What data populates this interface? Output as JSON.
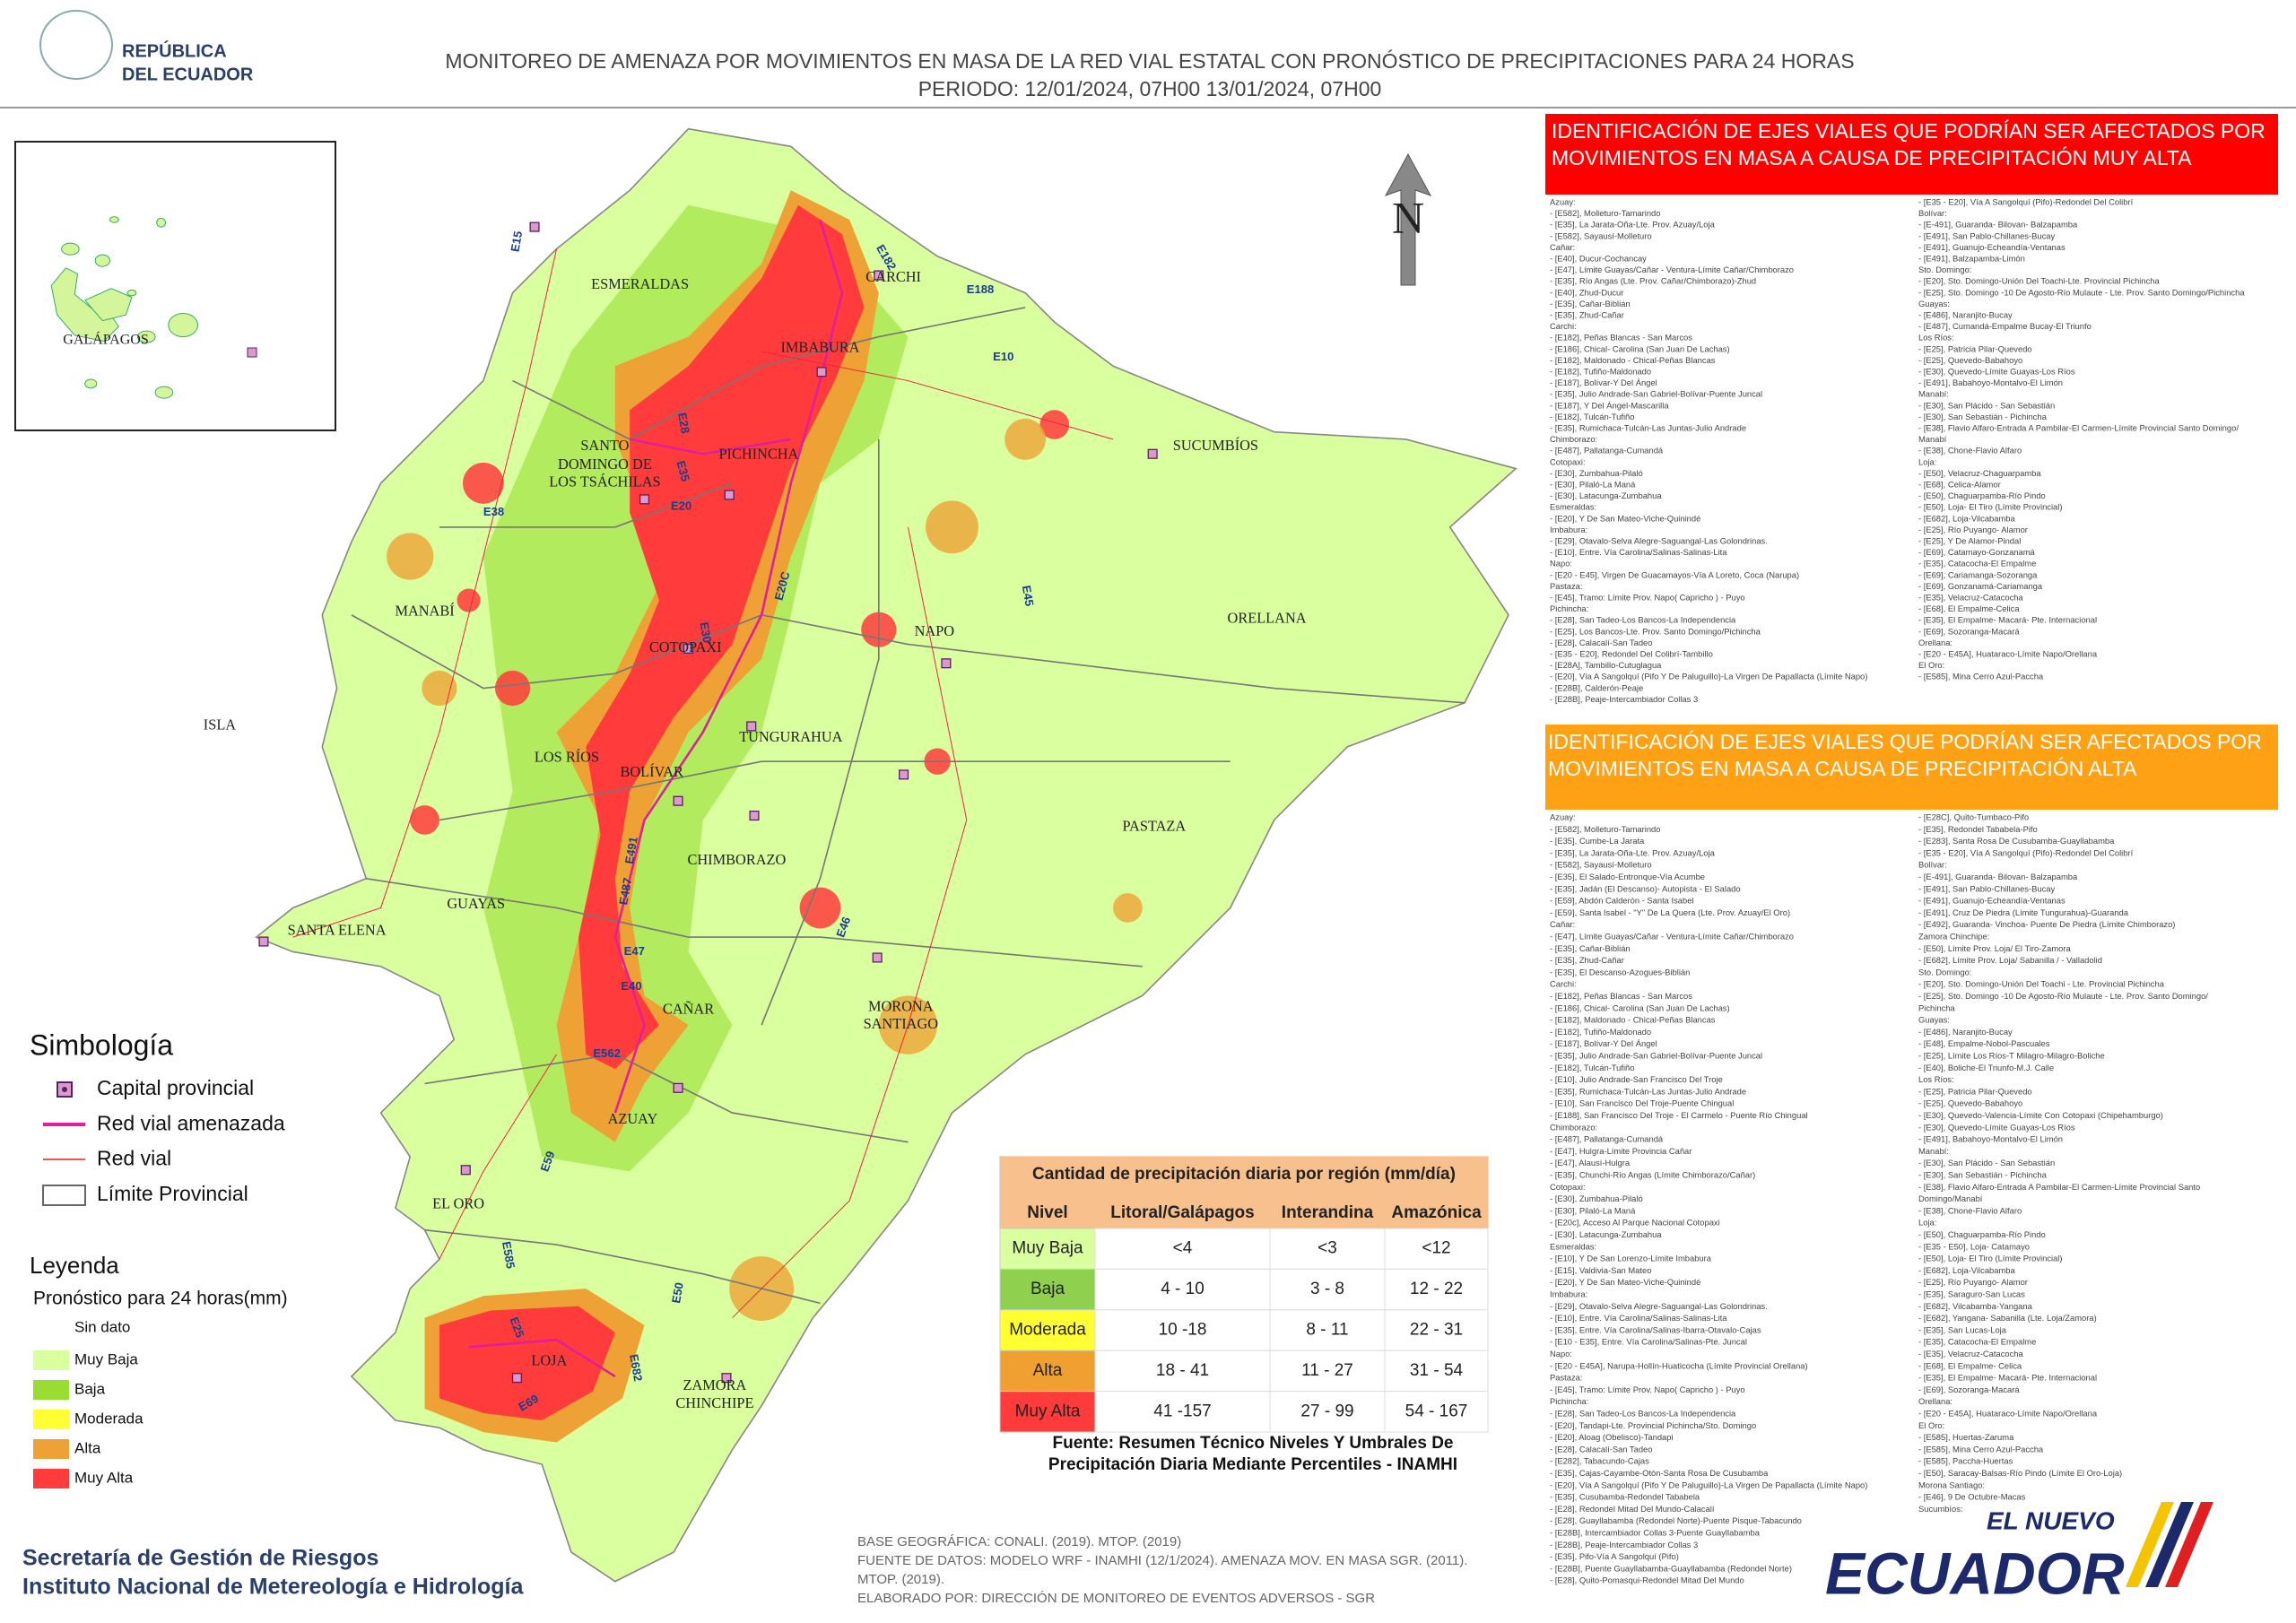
{
  "header": {
    "logo_text": [
      "REPÚBLICA",
      "DEL ECUADOR"
    ],
    "title": "MONITOREO DE AMENAZA POR MOVIMIENTOS EN MASA DE LA RED VIAL  ESTATAL  CON PRONÓSTICO  DE  PRECIPITACIONES PARA 24 HORAS",
    "period": "PERIODO: 12/01/2024, 07H00 13/01/2024, 07H00"
  },
  "inset": {
    "label": "GALÁPAGOS"
  },
  "north": "N",
  "map": {
    "provinces": [
      "ESMERALDAS",
      "CARCHI",
      "IMBABURA",
      "SUCUMBÍOS",
      "SANTO",
      "DOMINGO DE",
      "LOS TSÁCHILAS",
      "PICHINCHA",
      "MANABÍ",
      "COTOPAXI",
      "NAPO",
      "ORELLANA",
      "ISLA",
      "TUNGURAHUA",
      "LOS RÍOS",
      "BOLÍVAR",
      "PASTAZA",
      "CHIMBORAZO",
      "GUAYAS",
      "SANTA ELENA",
      "CAÑAR",
      "MORONA",
      "SANTIAGO",
      "AZUAY",
      "EL ORO",
      "LOJA",
      "ZAMORA",
      "CHINCHIPE"
    ],
    "roads": [
      "E15",
      "E182",
      "E10",
      "E28",
      "E35",
      "E20",
      "E30",
      "E45",
      "E40",
      "E25",
      "E59",
      "E50",
      "E69",
      "E682",
      "E487",
      "E491",
      "E38",
      "E20C",
      "E47",
      "E46",
      "E585",
      "E562",
      "E188"
    ]
  },
  "panel_very_high": {
    "title": [
      "IDENTIFICACIÓN DE EJES VIALES QUE PODRÍAN SER AFECTADOS POR",
      "MOVIMIENTOS EN MASA A CAUSA DE PRECIPITACIÓN MUY ALTA"
    ],
    "col1": [
      "Azuay:",
      "- [E582], Molleturo-Tamarindo",
      "- [E35], La Jarata-Oña-Lte. Prov. Azuay/Loja",
      "- [E582], Sayausí-Molleturo",
      "Cañar:",
      "- [E40], Ducur-Cochancay",
      "- [E47], Límite Guayas/Cañar - Ventura-Límite Cañar/Chimborazo",
      "- [E35], Río Angas (Lte. Prov. Cañar/Chimborazo)-Zhud",
      "- [E40], Zhud-Ducur",
      "- [E35], Cañar-Biblián",
      "- [E35], Zhud-Cañar",
      "Carchi:",
      "- [E182], Peñas Blancas - San Marcos",
      "- [E186], Chical- Carolina (San Juan De Lachas)",
      "- [E182], Maldonado - Chical-Peñas Blancas",
      "- [E182], Tufiño-Maldonado",
      "- [E187], Bolívar-Y Del Ángel",
      "- [E35], Julio Andrade-San Gabriel-Bolívar-Puente Juncal",
      "- [E187], Y Del Ángel-Mascarilla",
      "- [E182], Tulcán-Tufiño",
      "- [E35], Rumichaca-Tulcán-Las Juntas-Julio Andrade",
      "Chimborazo:",
      "- [E487], Pallatanga-Cumandá",
      "Cotopaxi:",
      "- [E30], Zumbahua-Pilaló",
      "- [E30], Pilaló-La Maná",
      "- [E30], Latacunga-Zumbahua",
      "Esmeraldas:",
      "- [E20], Y De San Mateo-Viche-Quinindé",
      "Imbabura:",
      "- [E29], Otavalo-Selva Alegre-Saguangal-Las Golondrinas.",
      "- [E10], Entre. Vía Carolina/Salinas-Salinas-Lita",
      "Napo:",
      "- [E20 - E45], Virgen De Guacamayos-Vía A Loreto, Coca (Narupa)",
      "Pastaza:",
      "- [E45], Tramo: Límite Prov. Napo( Capricho ) - Puyo",
      "Pichincha:",
      "- [E28], San Tadeo-Los Bancos-La Independencia",
      "- [E25], Los Bancos-Lte. Prov. Santo Domingo/Pichincha",
      "- [E28], Calacalí-San Tadeo",
      "- [E35 - E20], Redondel Del Colibrí-Tambillo",
      "- [E28A], Tambillo-Cutuglagua",
      "- [E20], Vía A Sangolquí (Pifo Y De Paluguillo)-La Virgen De Papallacta (Límite Napo)",
      "- [E28B], Calderón-Peaje",
      "- [E28B], Peaje-Intercambiador Collas 3"
    ],
    "col2": [
      "- [E35 - E20], Vía A Sangolquí (Pifo)-Redondel Del Colibrí",
      "Bolívar:",
      "- [E-491], Guaranda- Bilovan- Balzapamba",
      "- [E491], San Pablo-Chillanes-Bucay",
      "- [E491], Guanujo-Echeandía-Ventanas",
      "- [E491], Balzapamba-Limón",
      "Sto. Domingo:",
      "- [E20], Sto. Domingo-Unión Del Toachi-Lte. Provincial Pichincha",
      "- [E25], Sto. Domingo -10 De Agosto-Río Mulaute - Lte. Prov. Santo Domingo/Pichincha",
      "Guayas:",
      "- [E486], Naranjito-Bucay",
      "- [E487], Cumandá-Empalme Bucay-El Triunfo",
      "Los Ríos:",
      "- [E25], Patricia Pilar-Quevedo",
      "- [E25], Quevedo-Babahoyo",
      "- [E30], Quevedo-Límite Guayas-Los Ríos",
      "- [E491], Babahoyo-Montalvo-El Limón",
      "Manabí:",
      "- [E30], San Plácido - San Sebastián",
      "- [E30], San Sebastián - Pichincha",
      "- [E38], Flavio Alfaro-Entrada A Pambilar-El Carmen-Límite Provincial Santo Domingo/",
      "Manabí",
      "- [E38], Chone-Flavio Alfaro",
      "Loja:",
      "- [E50], Velacruz-Chaguarpamba",
      "- [E68], Celica-Alamor",
      "- [E50], Chaguarpamba-Río Pindo",
      "- [E50], Loja- El Tiro (Límite Provincial)",
      "- [E682], Loja-Vilcabamba",
      "- [E25], Río Puyango- Alamor",
      "- [E25], Y De Alamor-Pindal",
      "- [E69], Catamayo-Gonzanamá",
      "- [E35], Catacocha-El Empalme",
      "- [E69], Cariamanga-Sozoranga",
      "- [E69], Gonzanamá-Cariamanga",
      "- [E35], Velacruz-Catacocha",
      "- [E68], El Empalme-Celica",
      "- [E35], El Empalme- Macará- Pte. Internacional",
      "- [E69], Sozoranga-Macará",
      "Orellana:",
      "- [E20 - E45A], Huataraco-Límite Napo/Orellana",
      "El Oro:",
      "- [E585], Mina Cerro Azul-Paccha"
    ]
  },
  "panel_high": {
    "title": [
      "IDENTIFICACIÓN DE EJES VIALES QUE PODRÍAN SER AFECTADOS POR",
      "MOVIMIENTOS EN MASA A CAUSA DE PRECIPITACIÓN  ALTA"
    ],
    "col1": [
      "Azuay:",
      "- [E582], Molleturo-Tamarindo",
      "- [E35], Cumbe-La Jarata",
      "- [E35], La Jarata-Oña-Lte. Prov. Azuay/Loja",
      "- [E582], Sayausí-Molleturo",
      "- [E35], El Salado-Entronque-Vía Acumbe",
      "- [E35], Jadán (El Descanso)- Autopista - El Salado",
      "- [E59], Abdón Calderón - Santa Isabel",
      "- [E59], Santa Isabel - \"Y\" De La Quera (Lte. Prov. Azuay/El Oro)",
      "Cañar:",
      "- [E47], Límite Guayas/Cañar - Ventura-Límite Cañar/Chimborazo",
      "- [E35], Cañar-Biblián",
      "- [E35], Zhud-Cañar",
      "- [E35], El Descanso-Azogues-Biblián",
      "Carchi:",
      "- [E182], Peñas Blancas - San Marcos",
      "- [E186], Chical- Carolina (San Juan De Lachas)",
      "- [E182], Maldonado - Chical-Peñas Blancas",
      "- [E182], Tufiño-Maldonado",
      "- [E187], Bolívar-Y Del Ángel",
      "- [E35], Julio Andrade-San Gabriel-Bolívar-Puente Juncal",
      "- [E182], Tulcán-Tufiño",
      "- [E10], Julio Andrade-San Francisco Del Troje",
      "- [E35], Rumichaca-Tulcán-Las Juntas-Julio Andrade",
      "- [E10], San Francisco Del Troje-Puente Chingual",
      "- [E188], San Francisco Del Troje - El Carmelo - Puente Río Chingual",
      "Chimborazo:",
      "- [E487], Pallatanga-Cumandá",
      "- [E47], Hulgra-Límite Provincia Cañar",
      "- [E47], Alausí-Hulgra",
      "- [E35], Chunchi-Río Angas (Límite Chimborazo/Cañar)",
      "Cotopaxi:",
      "- [E30], Zumbahua-Pilaló",
      "- [E30], Pilaló-La Maná",
      "- [E20c], Acceso Al Parque Nacional Cotopaxi",
      "- [E30], Latacunga-Zumbahua",
      "Esmeraldas:",
      "- [E10], Y De San Lorenzo-Límite Imbabura",
      "- [E15], Valdivia-San Mateo",
      "- [E20], Y De San Mateo-Viche-Quinindé",
      "Imbabura:",
      "- [E29], Otavalo-Selva Alegre-Saguangal-Las Golondrinas.",
      "- [E10], Entre. Vía Carolina/Salinas-Salinas-Lita",
      "- [E35], Entre. Vía Carolina/Salinas-Ibarra-Otavalo-Cajas",
      "- [E10 - E35], Entre. Vía Carolina/Salinas-Pte. Juncal",
      "Napo:",
      "- [E20 - E45A], Narupa-Hollín-Huaticocha (Límite Provincial Orellana)",
      "Pastaza:",
      "- [E45], Tramo: Límite Prov. Napo( Capricho ) - Puyo",
      "Pichincha:",
      "- [E28], San Tadeo-Los Bancos-La Independencia",
      "- [E20], Tandapi-Lte. Provincial Pichincha/Sto. Domingo",
      "- [E20], Aloag (Obelisco)-Tandapi",
      "- [E28], Calacalí-San Tadeo",
      "- [E282], Tabacundo-Cajas",
      "- [E35], Cajas-Cayambe-Otón-Santa Rosa De Cusubamba",
      "- [E20], Vía A Sangolquí (Pifo Y De Paluguillo)-La Virgen De Papallacta (Límite Napo)",
      "- [E35], Cusubamba-Redondel Tababela",
      "- [E28], Redondel Mitad Del Mundo-Calacalí",
      "- [E28], Guayllabamba (Redondel Norte)-Puente Pisque-Tabacundo",
      "- [E28B], Intercambiador Collas 3-Puente Guayllabamba",
      "- [E28B], Peaje-Intercambiador Collas 3",
      "- [E35], Pifo-Vía A Sangolquí (Pifo)",
      "- [E28B], Puente Guayllabamba-Guayllabamba (Redondel Norte)",
      "- [E28], Quito-Pomasqui-Redondel Mitad Del Mundo"
    ],
    "col2": [
      "- [E28C], Quito-Tumbaco-Pifo",
      "- [E35], Redondel Tababela-Pifo",
      "- [E283], Santa Rosa De Cusubamba-Guayllabamba",
      "- [E35 - E20], Vía A Sangolquí (Pifo)-Redondel Del Colibrí",
      "Bolívar:",
      "- [E-491], Guaranda- Bilovan- Balzapamba",
      "- [E491], San Pablo-Chillanes-Bucay",
      "- [E491], Guanujo-Echeandía-Ventanas",
      "- [E491], Cruz De Piedra (Límite Tungurahua)-Guaranda",
      "- [E492], Guaranda- Vinchoa- Puente De Piedra (Límite Chimborazo)",
      "Zamora Chinchipe:",
      "- [E50], Límite Prov. Loja/ El Tiro-Zamora",
      "- [E682], Límite Prov. Loja/ Sabanilla / - Valladolid",
      "Sto. Domingo:",
      "- [E20], Sto. Domingo-Unión Del Toachi - Lte. Provincial Pichincha",
      "- [E25], Sto. Domingo -10 De Agosto-Río Mulaute - Lte. Prov. Santo Domingo/",
      "Pichincha",
      "Guayas:",
      "- [E486], Naranjito-Bucay",
      "- [E48], Empalme-Nobol-Pascuales",
      "- [E25], Límite Los Ríos-T Milagro-Milagro-Boliche",
      "- [E40], Boliche-El Triunfo-M.J. Calle",
      "Los Ríos:",
      "- [E25], Patricia Pilar-Quevedo",
      "- [E25], Quevedo-Babahoyo",
      "- [E30], Quevedo-Valencia-Límite Con Cotopaxi (Chipehamburgo)",
      "- [E30], Quevedo-Límite Guayas-Los Ríos",
      "- [E491], Babahoyo-Montalvo-El Limón",
      "Manabí:",
      "- [E30], San Plácido - San Sebastián",
      "- [E30], San Sebastián - Pichincha",
      "- [E38], Flavio Alfaro-Entrada A Pambilar-El Carmen-Límite Provincial Santo",
      "Domingo/Manabí",
      "- [E38], Chone-Flavio Alfaro",
      "Loja:",
      "- [E50], Chaguarpamba-Río Pindo",
      "- [E35 - E50], Loja- Catamayo",
      "- [E50], Loja- El Tiro (Límite Provincial)",
      "- [E682], Loja-Vilcabamba",
      "- [E25], Río Puyango- Alamor",
      "- [E35], Saraguro-San Lucas",
      "- [E682], Vilcabamba-Yangana",
      "- [E682], Yangana- Sabanilla (Lte. Loja/Zamora)",
      "- [E35], San Lucas-Loja",
      "- [E35], Catacocha-El Empalme",
      "- [E35], Velacruz-Catacocha",
      "- [E68], El Empalme- Celica",
      "- [E35], El Empalme- Macará- Pte. Internacional",
      "- [E69], Sozoranga-Macará",
      "Orellana:",
      "- [E20 - E45A], Huataraco-Límite Napo/Orellana",
      "El Oro:",
      "- [E585], Huertas-Zaruma",
      "- [E585], Mina Cerro Azul-Paccha",
      "- [E585], Paccha-Huertas",
      "- [E50], Saracay-Balsas-Río Pindo (Límite El Oro-Loja)",
      "Morona Santiago:",
      "- [E46], 9 De Octubre-Macas",
      "Sucumbíos:"
    ]
  },
  "symbology": {
    "title": "Simbología",
    "items": [
      "Capital provincial",
      "Red vial amenazada",
      "Red vial",
      "Límite Provincial"
    ]
  },
  "legend": {
    "title": "Leyenda",
    "subtitle": "Pronóstico para 24 horas(mm)",
    "items": [
      {
        "label": "Sin dato",
        "color": "#ffffff"
      },
      {
        "label": "Muy Baja",
        "color": "#d9ff9e"
      },
      {
        "label": "Baja",
        "color": "#99dd33"
      },
      {
        "label": "Moderada",
        "color": "#ffff33"
      },
      {
        "label": "Alta",
        "color": "#eea235"
      },
      {
        "label": "Muy Alta",
        "color": "#ff3b3b"
      }
    ]
  },
  "table": {
    "title": "Cantidad de precipitación diaria por región (mm/día)",
    "headers": [
      "Nivel",
      "Litoral/Galápagos",
      "Interandina",
      "Amazónica"
    ],
    "rows": [
      {
        "level": "Muy Baja",
        "color": "#d9ff9e",
        "values": [
          "<4",
          "<3",
          "<12"
        ]
      },
      {
        "level": "Baja",
        "color": "#8fd14f",
        "values": [
          "4 - 10",
          "3 - 8",
          "12 - 22"
        ]
      },
      {
        "level": "Moderada",
        "color": "#ffff33",
        "values": [
          "10 -18",
          "8 - 11",
          "22 - 31"
        ]
      },
      {
        "level": "Alta",
        "color": "#f0a030",
        "values": [
          "18 - 41",
          "11 - 27",
          "31 - 54"
        ]
      },
      {
        "level": "Muy Alta",
        "color": "#ff3b3b",
        "values": [
          "41 -157",
          "27 - 99",
          "54 - 167"
        ]
      }
    ],
    "source": [
      "Fuente: Resumen Técnico Niveles Y Umbrales De",
      "Precipitación Diaria Mediante Percentiles - INAMHI"
    ]
  },
  "footer": {
    "org": [
      "Secretaría de Gestión de Riesgos",
      "Instituto Nacional de Metereología e Hidrología"
    ],
    "credits": [
      "BASE GEOGRÁFICA: CONALI. (2019). MTOP. (2019)",
      "FUENTE DE DATOS: MODELO WRF - INAMHI (12/1/2024).  AMENAZA MOV. EN MASA SGR. (2011).",
      "MTOP. (2019).",
      "ELABORADO POR: DIRECCIÓN DE MONITOREO DE EVENTOS ADVERSOS - SGR"
    ],
    "logo": [
      "EL NUEVO",
      "ECUADOR"
    ]
  }
}
